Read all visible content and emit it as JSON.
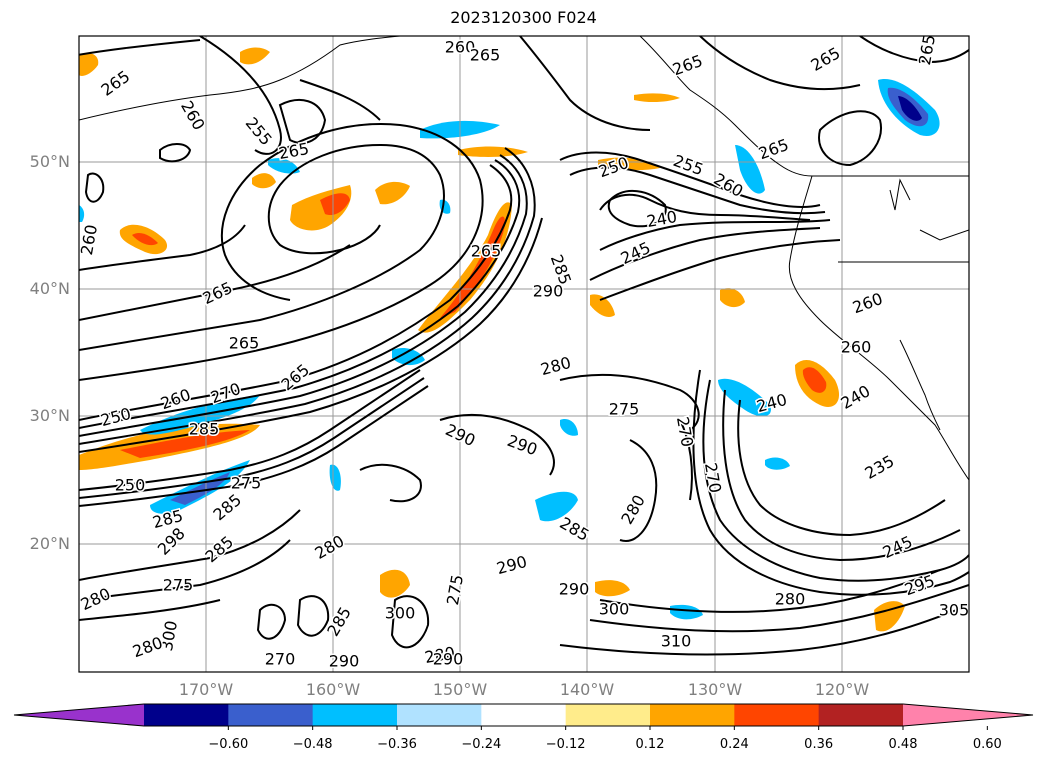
{
  "title": "2023120300 F024",
  "lat_labels": [
    "50°N",
    "40°N",
    "30°N",
    "20°N"
  ],
  "lon_labels": [
    "170°W",
    "160°W",
    "150°W",
    "140°W",
    "130°W",
    "120°W"
  ],
  "colorbar": {
    "colors": [
      "#9932cc",
      "#00008b",
      "#3a5fcd",
      "#00bfff",
      "#b0e2ff",
      "#ffffff",
      "#ffec8b",
      "#ffa500",
      "#ff4500",
      "#b22222",
      "#ff82ab"
    ],
    "tick_labels": [
      "−0.60",
      "−0.48",
      "−0.36",
      "−0.24",
      "−0.12",
      "0.12",
      "0.24",
      "0.36",
      "0.48",
      "0.60"
    ]
  },
  "contour_labels": [
    "260",
    "265",
    "265",
    "265",
    "265",
    "265",
    "260",
    "255",
    "265",
    "265",
    "250",
    "255",
    "260",
    "265",
    "240",
    "245",
    "285",
    "290",
    "260",
    "265",
    "260",
    "265",
    "280",
    "265",
    "260",
    "275",
    "240",
    "240",
    "270",
    "250",
    "260",
    "270",
    "285",
    "290",
    "290",
    "235",
    "270",
    "250",
    "285",
    "275",
    "285",
    "298",
    "280",
    "285",
    "280",
    "285",
    "290",
    "245",
    "295",
    "275",
    "290",
    "280",
    "300",
    "305",
    "300",
    "310",
    "280",
    "285",
    "290",
    "280",
    "300",
    "275",
    "270",
    "290",
    "280"
  ]
}
